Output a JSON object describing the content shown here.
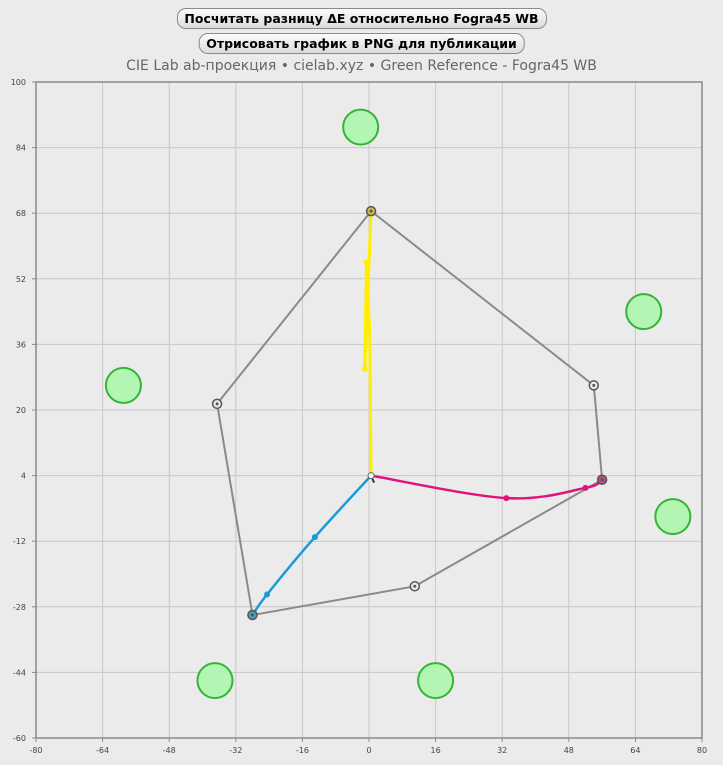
{
  "buttons": {
    "calc_label": "Посчитать разницу ΔE относительно Fogra45 WB",
    "export_label": "Отрисовать график в PNG для публикации"
  },
  "subtitle": "CIE Lab ab-проекция  •  cielab.xyz  •  Green Reference - Fogra45 WB",
  "colors": {
    "background": "#ebebeb",
    "grid": "#c8c8c8",
    "hull": "#8a8a8a",
    "yellow": "#ffee00",
    "magenta": "#e0137f",
    "cyan": "#1a9ad9",
    "green_fill": "#b3f5b3",
    "green_stroke": "#33b533"
  },
  "chart_data": {
    "type": "scatter",
    "xlim": [
      -80,
      80
    ],
    "ylim": [
      -60,
      100
    ],
    "x_ticks": [
      -80,
      -64,
      -48,
      -32,
      -16,
      0,
      16,
      32,
      48,
      64,
      80
    ],
    "y_ticks": [
      100,
      84,
      68,
      52,
      36,
      20,
      4,
      -12,
      -28,
      -44,
      -60
    ],
    "grid": true,
    "gamut_hull": [
      [
        0.5,
        68.5
      ],
      [
        54,
        26
      ],
      [
        56,
        3
      ],
      [
        11,
        -23
      ],
      [
        -28,
        -30
      ],
      [
        -36.5,
        21.5
      ]
    ],
    "hull_markers": [
      {
        "x": 0.5,
        "y": 68.5,
        "fill": "#d2b84a"
      },
      {
        "x": 54,
        "y": 26,
        "fill": "#ebebeb"
      },
      {
        "x": 56,
        "y": 3,
        "fill": "#c44a87"
      },
      {
        "x": 11,
        "y": -23,
        "fill": "#ebebeb"
      },
      {
        "x": -28,
        "y": -30,
        "fill": "#4a9ec8"
      },
      {
        "x": -36.5,
        "y": 21.5,
        "fill": "#ebebeb"
      }
    ],
    "origin": {
      "x": 0.5,
      "y": 4
    },
    "series": [
      {
        "color": "yellow",
        "points": [
          [
            0.5,
            4
          ],
          [
            0.2,
            38
          ],
          [
            -0.2,
            47
          ],
          [
            -0.4,
            52
          ],
          [
            -0.6,
            56
          ],
          [
            -1,
            30
          ],
          [
            0.5,
            68.5
          ]
        ],
        "markers": [
          [
            -0.6,
            56
          ],
          [
            -1,
            30
          ]
        ]
      },
      {
        "color": "magenta",
        "points": [
          [
            0.5,
            4
          ],
          [
            33,
            -1.5
          ],
          [
            52,
            1
          ],
          [
            56,
            3
          ]
        ],
        "markers": [
          [
            33,
            -1.5
          ],
          [
            52,
            1
          ]
        ]
      },
      {
        "color": "cyan",
        "points": [
          [
            0.5,
            4
          ],
          [
            -13,
            -11
          ],
          [
            -24.5,
            -25
          ],
          [
            -28,
            -30
          ]
        ],
        "markers": [
          [
            -13,
            -11
          ],
          [
            -24.5,
            -25
          ]
        ]
      }
    ],
    "green_references": [
      {
        "x": -2,
        "y": 89
      },
      {
        "x": 66,
        "y": 44
      },
      {
        "x": -59,
        "y": 26
      },
      {
        "x": 73,
        "y": -6
      },
      {
        "x": -37,
        "y": -46
      },
      {
        "x": 16,
        "y": -46
      }
    ]
  }
}
